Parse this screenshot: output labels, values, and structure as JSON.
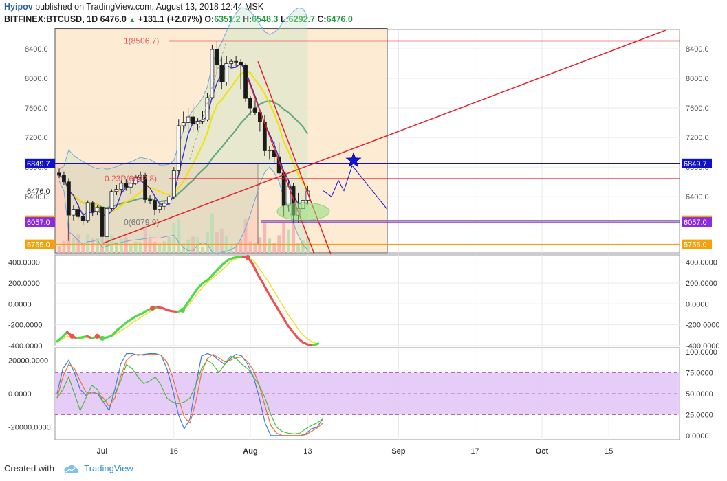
{
  "header": {
    "author": "Hyipov",
    "published_text": "published on TradingView.com, August 13, 2018 12:44 MSK",
    "symbol": "BITFINEX:BTCUSD, 1D",
    "last": "6476.0",
    "change_arrow": "▲",
    "change": "+131.1 (+2.07%)",
    "o_label": "O:",
    "o_value": "6351.2",
    "h_label": "H:",
    "h_value": "6548.3",
    "l_label": "L:",
    "l_value": "6292.7",
    "c_label": "C:",
    "c_value": "6476.0"
  },
  "footer": {
    "created_with": "Created with",
    "brand": "TradingView"
  },
  "colors": {
    "up_candle": "#f5f5f5",
    "down_candle": "#1a1a1a",
    "red_line": "#e8202a",
    "blue_line": "#1010c8",
    "orange_line": "#f7a10a",
    "purple_line": "#8a2be2",
    "fib_fill": "#fde8cc",
    "rsi_band": "#e3c8f7"
  },
  "chart_data": [
    {
      "type": "candlestick",
      "panel": "price",
      "symbol": "BITFINEX:BTCUSD",
      "interval": "1D",
      "y_ticks": [
        6400,
        6800,
        7200,
        7600,
        8000,
        8400
      ],
      "y_tick_labels": [
        "6400.0",
        "6800.0",
        "7200.0",
        "7600.0",
        "8000.0",
        "8400.0"
      ],
      "ylim": [
        5640,
        8660
      ],
      "x_tick_labels": [
        "Jul",
        "16",
        "Aug",
        "13",
        "Sep",
        "17",
        "Oct",
        "15"
      ],
      "x_tick_dates": [
        "2018-07-01",
        "2018-07-16",
        "2018-08-01",
        "2018-08-13",
        "2018-09-01",
        "2018-09-17",
        "2018-10-01",
        "2018-10-15"
      ],
      "first_date": "2018-06-22",
      "candles": [
        {
          "date": "2018-06-22",
          "o": 6720,
          "h": 6780,
          "l": 6650,
          "c": 6690
        },
        {
          "date": "2018-06-23",
          "o": 6690,
          "h": 6740,
          "l": 6560,
          "c": 6600
        },
        {
          "date": "2018-06-24",
          "o": 6600,
          "h": 6650,
          "l": 5800,
          "c": 6150
        },
        {
          "date": "2018-06-25",
          "o": 6150,
          "h": 6280,
          "l": 6080,
          "c": 6230
        },
        {
          "date": "2018-06-26",
          "o": 6230,
          "h": 6300,
          "l": 6100,
          "c": 6130
        },
        {
          "date": "2018-06-27",
          "o": 6130,
          "h": 6180,
          "l": 6020,
          "c": 6080
        },
        {
          "date": "2018-06-28",
          "o": 6080,
          "h": 6350,
          "l": 6050,
          "c": 6320
        },
        {
          "date": "2018-06-29",
          "o": 6320,
          "h": 6340,
          "l": 6140,
          "c": 6200
        },
        {
          "date": "2018-06-30",
          "o": 6200,
          "h": 6280,
          "l": 6150,
          "c": 6260
        },
        {
          "date": "2018-07-01",
          "o": 6260,
          "h": 6300,
          "l": 5780,
          "c": 5860
        },
        {
          "date": "2018-07-02",
          "o": 5860,
          "h": 6350,
          "l": 5800,
          "c": 6240
        },
        {
          "date": "2018-07-03",
          "o": 6240,
          "h": 6500,
          "l": 6220,
          "c": 6470
        },
        {
          "date": "2018-07-04",
          "o": 6470,
          "h": 6560,
          "l": 6420,
          "c": 6500
        },
        {
          "date": "2018-07-05",
          "o": 6500,
          "h": 6620,
          "l": 6450,
          "c": 6580
        },
        {
          "date": "2018-07-06",
          "o": 6580,
          "h": 6640,
          "l": 6480,
          "c": 6530
        },
        {
          "date": "2018-07-07",
          "o": 6530,
          "h": 6600,
          "l": 6440,
          "c": 6580
        },
        {
          "date": "2018-07-08",
          "o": 6580,
          "h": 6700,
          "l": 6560,
          "c": 6660
        },
        {
          "date": "2018-07-09",
          "o": 6660,
          "h": 6740,
          "l": 6620,
          "c": 6690
        },
        {
          "date": "2018-07-10",
          "o": 6690,
          "h": 6720,
          "l": 6320,
          "c": 6360
        },
        {
          "date": "2018-07-11",
          "o": 6360,
          "h": 6420,
          "l": 6300,
          "c": 6350
        },
        {
          "date": "2018-07-12",
          "o": 6350,
          "h": 6400,
          "l": 6150,
          "c": 6230
        },
        {
          "date": "2018-07-13",
          "o": 6230,
          "h": 6300,
          "l": 6180,
          "c": 6270
        },
        {
          "date": "2018-07-14",
          "o": 6270,
          "h": 6340,
          "l": 6220,
          "c": 6310
        },
        {
          "date": "2018-07-15",
          "o": 6310,
          "h": 6420,
          "l": 6280,
          "c": 6400
        },
        {
          "date": "2018-07-16",
          "o": 6400,
          "h": 6800,
          "l": 6370,
          "c": 6750
        },
        {
          "date": "2018-07-17",
          "o": 6750,
          "h": 7450,
          "l": 6700,
          "c": 7360
        },
        {
          "date": "2018-07-18",
          "o": 7360,
          "h": 7550,
          "l": 7280,
          "c": 7400
        },
        {
          "date": "2018-07-19",
          "o": 7400,
          "h": 7600,
          "l": 7280,
          "c": 7480
        },
        {
          "date": "2018-07-20",
          "o": 7480,
          "h": 7650,
          "l": 7280,
          "c": 7380
        },
        {
          "date": "2018-07-21",
          "o": 7380,
          "h": 7460,
          "l": 7300,
          "c": 7420
        },
        {
          "date": "2018-07-22",
          "o": 7420,
          "h": 7560,
          "l": 7380,
          "c": 7440
        },
        {
          "date": "2018-07-23",
          "o": 7440,
          "h": 7800,
          "l": 7420,
          "c": 7740
        },
        {
          "date": "2018-07-24",
          "o": 7740,
          "h": 8450,
          "l": 7720,
          "c": 8390
        },
        {
          "date": "2018-07-25",
          "o": 8390,
          "h": 8500,
          "l": 8050,
          "c": 8180
        },
        {
          "date": "2018-07-26",
          "o": 8180,
          "h": 8300,
          "l": 7850,
          "c": 7950
        },
        {
          "date": "2018-07-27",
          "o": 7950,
          "h": 8300,
          "l": 7900,
          "c": 8200
        },
        {
          "date": "2018-07-28",
          "o": 8200,
          "h": 8260,
          "l": 8150,
          "c": 8230
        },
        {
          "date": "2018-07-29",
          "o": 8230,
          "h": 8300,
          "l": 8150,
          "c": 8220
        },
        {
          "date": "2018-07-30",
          "o": 8220,
          "h": 8260,
          "l": 7850,
          "c": 8180
        },
        {
          "date": "2018-07-31",
          "o": 8180,
          "h": 8200,
          "l": 7680,
          "c": 7730
        },
        {
          "date": "2018-08-01",
          "o": 7730,
          "h": 7760,
          "l": 7500,
          "c": 7600
        },
        {
          "date": "2018-08-02",
          "o": 7600,
          "h": 7700,
          "l": 7500,
          "c": 7540
        },
        {
          "date": "2018-08-03",
          "o": 7540,
          "h": 7560,
          "l": 7280,
          "c": 7410
        },
        {
          "date": "2018-08-04",
          "o": 7410,
          "h": 7500,
          "l": 6950,
          "c": 7020
        },
        {
          "date": "2018-08-05",
          "o": 7020,
          "h": 7080,
          "l": 6900,
          "c": 7030
        },
        {
          "date": "2018-08-06",
          "o": 7030,
          "h": 7150,
          "l": 6850,
          "c": 6940
        },
        {
          "date": "2018-08-07",
          "o": 6940,
          "h": 7130,
          "l": 6700,
          "c": 6720
        },
        {
          "date": "2018-08-08",
          "o": 6720,
          "h": 6730,
          "l": 6130,
          "c": 6280
        },
        {
          "date": "2018-08-09",
          "o": 6280,
          "h": 6620,
          "l": 6200,
          "c": 6540
        },
        {
          "date": "2018-08-10",
          "o": 6540,
          "h": 6580,
          "l": 6050,
          "c": 6150
        },
        {
          "date": "2018-08-11",
          "o": 6150,
          "h": 6450,
          "l": 6050,
          "c": 6240
        },
        {
          "date": "2018-08-12",
          "o": 6240,
          "h": 6380,
          "l": 6200,
          "c": 6350
        },
        {
          "date": "2018-08-13",
          "o": 6351.2,
          "h": 6548.3,
          "l": 6292.7,
          "c": 6476.0
        }
      ],
      "price_labels": [
        {
          "value": 6849.7,
          "text": "6849.7",
          "color": "#1010c8"
        },
        {
          "value": 6476.0,
          "text": "6476.0",
          "color": "#ffffff"
        },
        {
          "value": 6079.9,
          "text": "6079.9",
          "color": "#f7a10a"
        },
        {
          "value": 6057.0,
          "text": "6057.0",
          "color": "#8a2be2"
        },
        {
          "value": 5755.0,
          "text": "5755.0",
          "color": "#f7a10a"
        }
      ],
      "fib_levels": [
        {
          "text": "1(8506.7)",
          "value": 8506.7
        },
        {
          "text": "0.236(6642.8)",
          "display_text": "0.23P(6642.8)",
          "value": 6642.8
        },
        {
          "text": "0(6079.9)",
          "value": 6079.9
        }
      ],
      "annotations": [
        "blue star target",
        "green ellipse support zone",
        "projected zig-zag path"
      ]
    },
    {
      "type": "line",
      "panel": "momentum",
      "y_ticks": [
        -400,
        -200,
        0,
        200,
        400
      ],
      "y_tick_labels": [
        "-400.0000",
        "-200.0000",
        "0.0000",
        "200.0000",
        "400.0000"
      ],
      "ylim": [
        -400,
        470
      ],
      "series": [
        {
          "name": "momentum",
          "color": "#f05050",
          "values": [
            -360,
            -320,
            -270,
            -310,
            -330,
            -320,
            -310,
            -330,
            -310,
            -330,
            -320,
            -300,
            -250,
            -210,
            -170,
            -140,
            -110,
            -90,
            -60,
            -40,
            -30,
            -40,
            -60,
            -70,
            -75,
            -60,
            10,
            80,
            150,
            200,
            230,
            280,
            330,
            380,
            420,
            440,
            450,
            450,
            445,
            380,
            280,
            200,
            110,
            30,
            -50,
            -130,
            -210,
            -270,
            -330,
            -370,
            -390,
            -395,
            -380
          ]
        },
        {
          "name": "signal",
          "color": "#f0e020",
          "values": [
            -360,
            -340,
            -310,
            -320,
            -330,
            -330,
            -320,
            -325,
            -320,
            -325,
            -320,
            -310,
            -280,
            -250,
            -220,
            -180,
            -150,
            -120,
            -90,
            -60,
            -40,
            -45,
            -55,
            -65,
            -72,
            -65,
            -20,
            40,
            100,
            160,
            210,
            250,
            290,
            330,
            380,
            420,
            440,
            450,
            440,
            420,
            360,
            290,
            220,
            140,
            60,
            -20,
            -100,
            -170,
            -240,
            -300,
            -340,
            -370,
            -380
          ]
        }
      ]
    },
    {
      "type": "line",
      "panel": "stochastic_rsi",
      "y_ticks_right": [
        0,
        25,
        50,
        75,
        100
      ],
      "y_tick_labels_right": [
        "0.0000",
        "25.0000",
        "50.0000",
        "75.0000",
        "100.0000"
      ],
      "y_ticks_left": [
        -20000,
        0,
        20000
      ],
      "y_tick_labels_left": [
        "-20000.0000",
        "0.0000",
        "20000.0000"
      ],
      "ylim": [
        -5,
        105
      ],
      "band": [
        25,
        75
      ],
      "series": [
        {
          "name": "k",
          "color": "#3a7dd8",
          "values": [
            50,
            80,
            90,
            75,
            55,
            48,
            52,
            50,
            40,
            30,
            55,
            85,
            98,
            98,
            96,
            97,
            98,
            98,
            96,
            80,
            55,
            25,
            8,
            20,
            60,
            95,
            98,
            96,
            90,
            85,
            92,
            97,
            95,
            85,
            70,
            45,
            15,
            0,
            0,
            0,
            0,
            0,
            0,
            2,
            8,
            10,
            20
          ]
        },
        {
          "name": "d",
          "color": "#f07030",
          "values": [
            45,
            70,
            85,
            80,
            65,
            52,
            50,
            50,
            45,
            35,
            45,
            70,
            90,
            96,
            97,
            96,
            97,
            97,
            96,
            88,
            70,
            45,
            22,
            15,
            40,
            75,
            92,
            97,
            93,
            88,
            90,
            93,
            94,
            88,
            78,
            60,
            35,
            12,
            3,
            0,
            0,
            0,
            0,
            1,
            5,
            9,
            15
          ]
        },
        {
          "name": "rsi",
          "color": "#4cbc3c",
          "values": [
            45,
            55,
            70,
            50,
            30,
            45,
            60,
            55,
            40,
            45,
            50,
            65,
            85,
            80,
            70,
            62,
            65,
            70,
            60,
            45,
            40,
            38,
            40,
            45,
            60,
            80,
            90,
            85,
            75,
            85,
            95,
            92,
            85,
            80,
            70,
            60,
            45,
            25,
            10,
            5,
            3,
            2,
            3,
            8,
            12,
            15,
            20
          ]
        }
      ]
    }
  ]
}
